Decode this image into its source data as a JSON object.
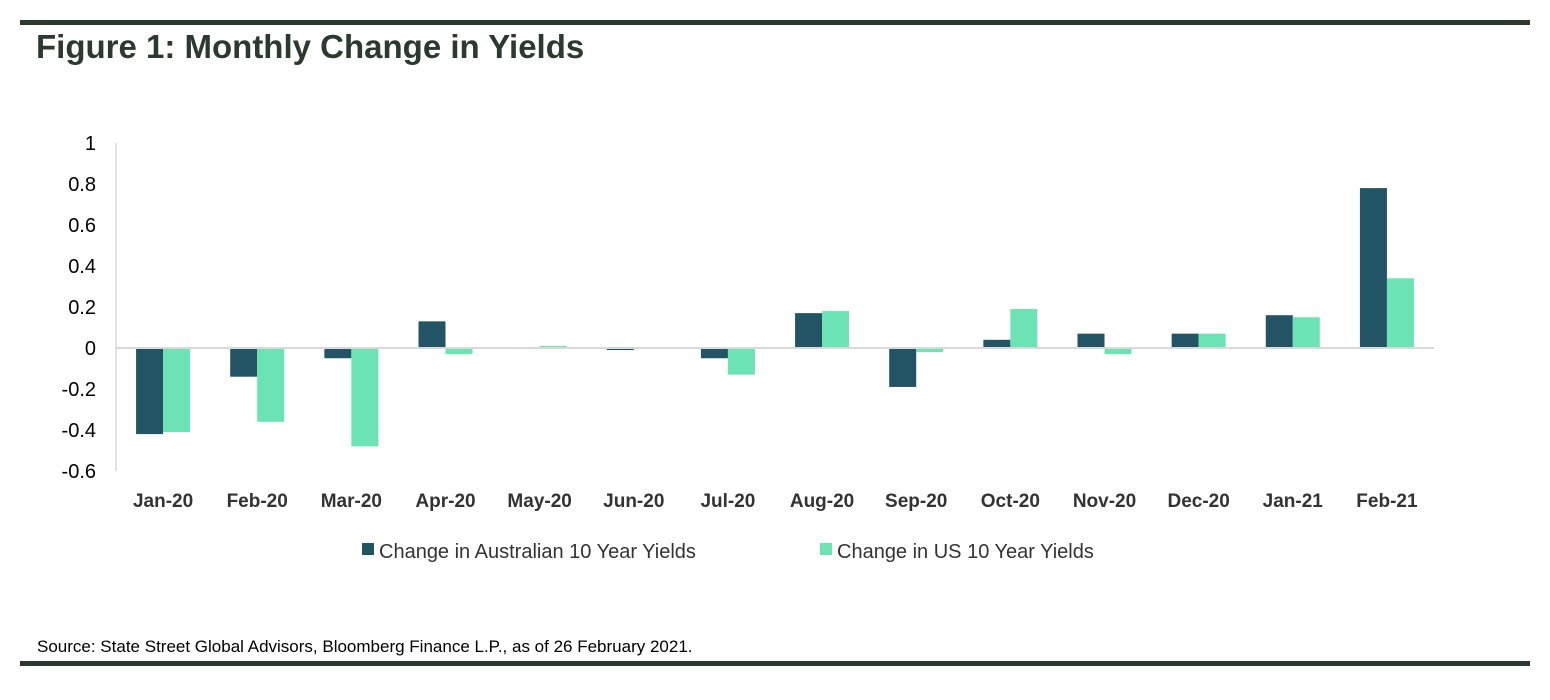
{
  "title": "Figure 1: Monthly Change in Yields",
  "source": "Source: State Street Global Advisors, Bloomberg Finance L.P., as of 26 February 2021.",
  "chart_data": {
    "type": "bar",
    "title": "Figure 1: Monthly Change in Yields",
    "xlabel": "",
    "ylabel": "",
    "ylim": [
      -0.6,
      1
    ],
    "yticks": [
      1,
      0.8,
      0.6,
      0.4,
      0.2,
      0,
      -0.2,
      -0.4,
      -0.6
    ],
    "ytick_labels": [
      "1",
      "0.8",
      "0.6",
      "0.4",
      "0.2",
      "0",
      "-0.2",
      "-0.4",
      "-0.6"
    ],
    "grid": false,
    "legend_position": "bottom",
    "categories": [
      "Jan-20",
      "Feb-20",
      "Mar-20",
      "Apr-20",
      "May-20",
      "Jun-20",
      "Jul-20",
      "Aug-20",
      "Sep-20",
      "Oct-20",
      "Nov-20",
      "Dec-20",
      "Jan-21",
      "Feb-21"
    ],
    "series": [
      {
        "name": "Change in Australian 10 Year Yields",
        "color": "#235466",
        "values": [
          -0.42,
          -0.14,
          -0.05,
          0.13,
          -0.005,
          -0.01,
          -0.05,
          0.17,
          -0.19,
          0.04,
          0.07,
          0.07,
          0.16,
          0.78
        ]
      },
      {
        "name": "Change in US 10 Year Yields",
        "color": "#6ce3b4",
        "values": [
          -0.41,
          -0.36,
          -0.48,
          -0.03,
          0.01,
          0.002,
          -0.13,
          0.18,
          -0.02,
          0.19,
          -0.03,
          0.07,
          0.15,
          0.34
        ]
      }
    ]
  }
}
